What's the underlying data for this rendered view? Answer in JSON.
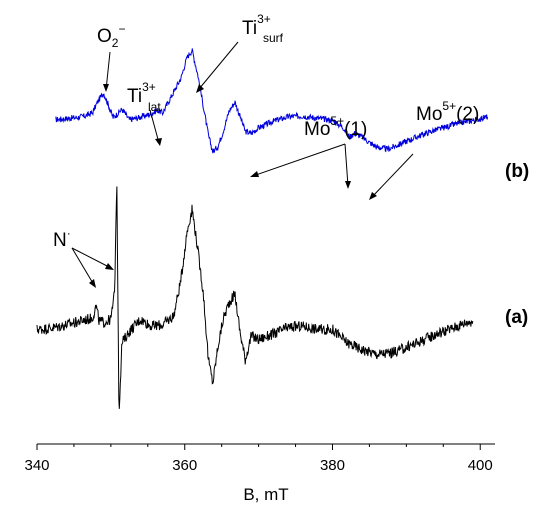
{
  "chart_data": {
    "type": "line",
    "xlabel": "B, mT",
    "ylabel": "",
    "xlim": [
      340,
      402
    ],
    "xticks": [
      340,
      360,
      380,
      400
    ],
    "yticks": [],
    "grid": false,
    "series": [
      {
        "name": "(b)",
        "color": "#0000dd",
        "x": [
          342.5,
          344,
          345.5,
          346.5,
          347.5,
          348.2,
          349,
          349.7,
          350.3,
          350.8,
          351.5,
          352.5,
          353.5,
          354.5,
          355.5,
          356.3,
          357,
          357.8,
          358.6,
          359.5,
          360.3,
          361,
          361.8,
          362.5,
          363.2,
          363.8,
          364.5,
          365.2,
          366,
          366.8,
          367.5,
          368.2,
          369,
          370,
          372,
          374,
          376,
          378,
          380,
          381.5,
          382.3,
          383,
          384,
          385,
          386,
          387.5,
          389,
          391,
          393,
          395,
          397,
          399,
          400,
          401
        ],
        "y": [
          0.82,
          0.85,
          0.88,
          0.92,
          1.0,
          1.3,
          1.55,
          1.2,
          0.88,
          0.96,
          1.1,
          0.82,
          0.86,
          0.92,
          0.98,
          1.08,
          1.0,
          1.3,
          1.6,
          1.95,
          2.5,
          2.7,
          2.0,
          1.2,
          0.4,
          -0.05,
          0.1,
          0.5,
          1.05,
          1.3,
          0.9,
          0.5,
          0.45,
          0.6,
          0.78,
          0.9,
          0.92,
          0.86,
          0.8,
          0.6,
          0.35,
          0.45,
          0.36,
          0.2,
          0.08,
          0.02,
          0.15,
          0.32,
          0.48,
          0.6,
          0.72,
          0.8,
          0.85,
          0.9
        ]
      },
      {
        "name": "(a)",
        "color": "#000000",
        "x": [
          340,
          342,
          344,
          346,
          347.5,
          348,
          348.4,
          349,
          350,
          350.5,
          350.8,
          351.1,
          351.5,
          352.5,
          354,
          355.5,
          357,
          358.5,
          359.5,
          360.3,
          361,
          361.7,
          362.5,
          363.2,
          363.8,
          364.5,
          365.2,
          366,
          366.8,
          367.5,
          368.2,
          369,
          370,
          372,
          374,
          376,
          378,
          380,
          382,
          384,
          386,
          388,
          390,
          392,
          394,
          396,
          398,
          399
        ],
        "y": [
          -0.35,
          -0.33,
          -0.28,
          -0.22,
          -0.18,
          0.0,
          -0.22,
          -0.25,
          -0.2,
          0.2,
          1.9,
          -1.6,
          -0.55,
          -0.38,
          -0.2,
          -0.3,
          -0.28,
          -0.15,
          0.4,
          1.1,
          1.45,
          0.9,
          0.2,
          -0.8,
          -1.15,
          -0.6,
          -0.2,
          0.05,
          0.18,
          -0.4,
          -0.8,
          -0.45,
          -0.5,
          -0.42,
          -0.32,
          -0.3,
          -0.35,
          -0.35,
          -0.55,
          -0.65,
          -0.72,
          -0.7,
          -0.62,
          -0.52,
          -0.42,
          -0.34,
          -0.25,
          -0.22
        ]
      }
    ],
    "curve_labels": [
      "(b)",
      "(a)"
    ],
    "annotations": {
      "o2": {
        "base": "O",
        "sub": "2",
        "sup": "−"
      },
      "ti_lat": {
        "base": "Ti",
        "sup": "3+",
        "sub": "lat"
      },
      "ti_surf": {
        "base": "Ti",
        "sup": "3+",
        "sub": "surf"
      },
      "mo1": {
        "base": "Mo",
        "sup": "5+",
        "tail": "(1)"
      },
      "mo2": {
        "base": "Mo",
        "sup": "5+",
        "tail": "(2)"
      },
      "n_rad": {
        "base": "N",
        "sup": "·"
      }
    }
  }
}
